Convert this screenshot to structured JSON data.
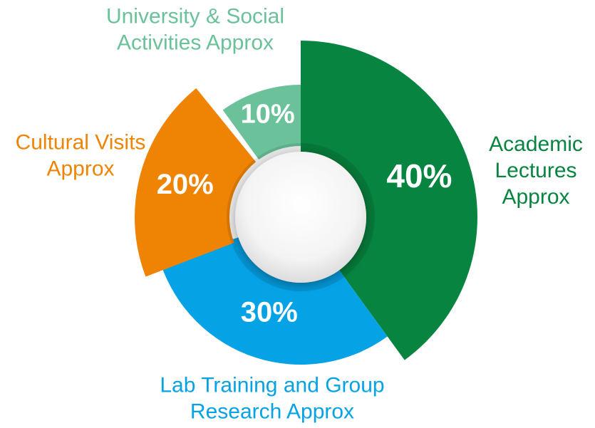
{
  "chart_data": {
    "type": "pie",
    "variant": "donut",
    "categories": [
      "Academic Lectures Approx",
      "Lab Training and Group Research Approx",
      "Cultural Visits Approx",
      "University & Social Activities Approx"
    ],
    "category_lines": [
      [
        "Academic",
        "Lectures",
        "Approx"
      ],
      [
        "Lab Training and Group",
        "Research Approx"
      ],
      [
        "Cultural Visits",
        "Approx"
      ],
      [
        "University & Social",
        "Activities Approx"
      ]
    ],
    "values": [
      40,
      30,
      20,
      10
    ],
    "value_labels": [
      "40%",
      "30%",
      "20%",
      "10%"
    ],
    "colors": [
      "#07843f",
      "#05a2e6",
      "#ef8404",
      "#6bc29a"
    ],
    "exploded": [
      true,
      false,
      true,
      false
    ],
    "start_angle": "12 o'clock",
    "direction": "clockwise",
    "legend": "none"
  }
}
